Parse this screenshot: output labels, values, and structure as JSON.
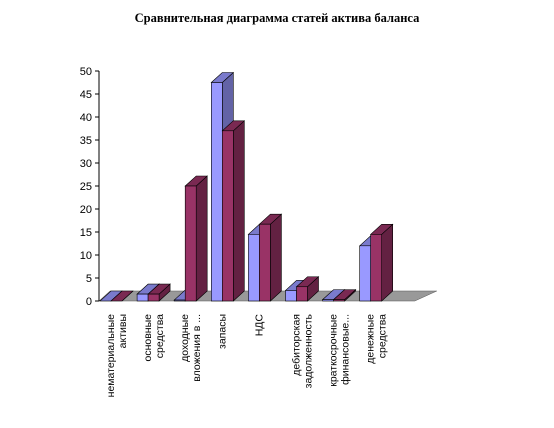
{
  "chart_data": {
    "type": "bar",
    "title": "Сравнительная диаграмма статей актива баланса",
    "xlabel": "",
    "ylabel": "",
    "ylim": [
      0,
      50
    ],
    "yticks": [
      0,
      5,
      10,
      15,
      20,
      25,
      30,
      35,
      40,
      45,
      50
    ],
    "grid": false,
    "legend": "none",
    "categories": [
      [
        "нематериальные",
        "активы"
      ],
      [
        "основные",
        "средства"
      ],
      [
        "доходные",
        "вложения в ..."
      ],
      [
        "запасы"
      ],
      [
        "НДС"
      ],
      [
        "дебиторская",
        "задолженность"
      ],
      [
        "краткосрочные",
        "финансовые..."
      ],
      [
        "денежные",
        "средства"
      ]
    ],
    "series": [
      {
        "values": [
          0,
          1.5,
          0.2,
          47.5,
          14.5,
          2.3,
          0.3,
          12
        ],
        "color": "#9999ff"
      },
      {
        "values": [
          0,
          1.5,
          25,
          37,
          16.7,
          3.1,
          0.3,
          14.5
        ],
        "color": "#993366"
      }
    ],
    "floor_color": "#999999"
  }
}
